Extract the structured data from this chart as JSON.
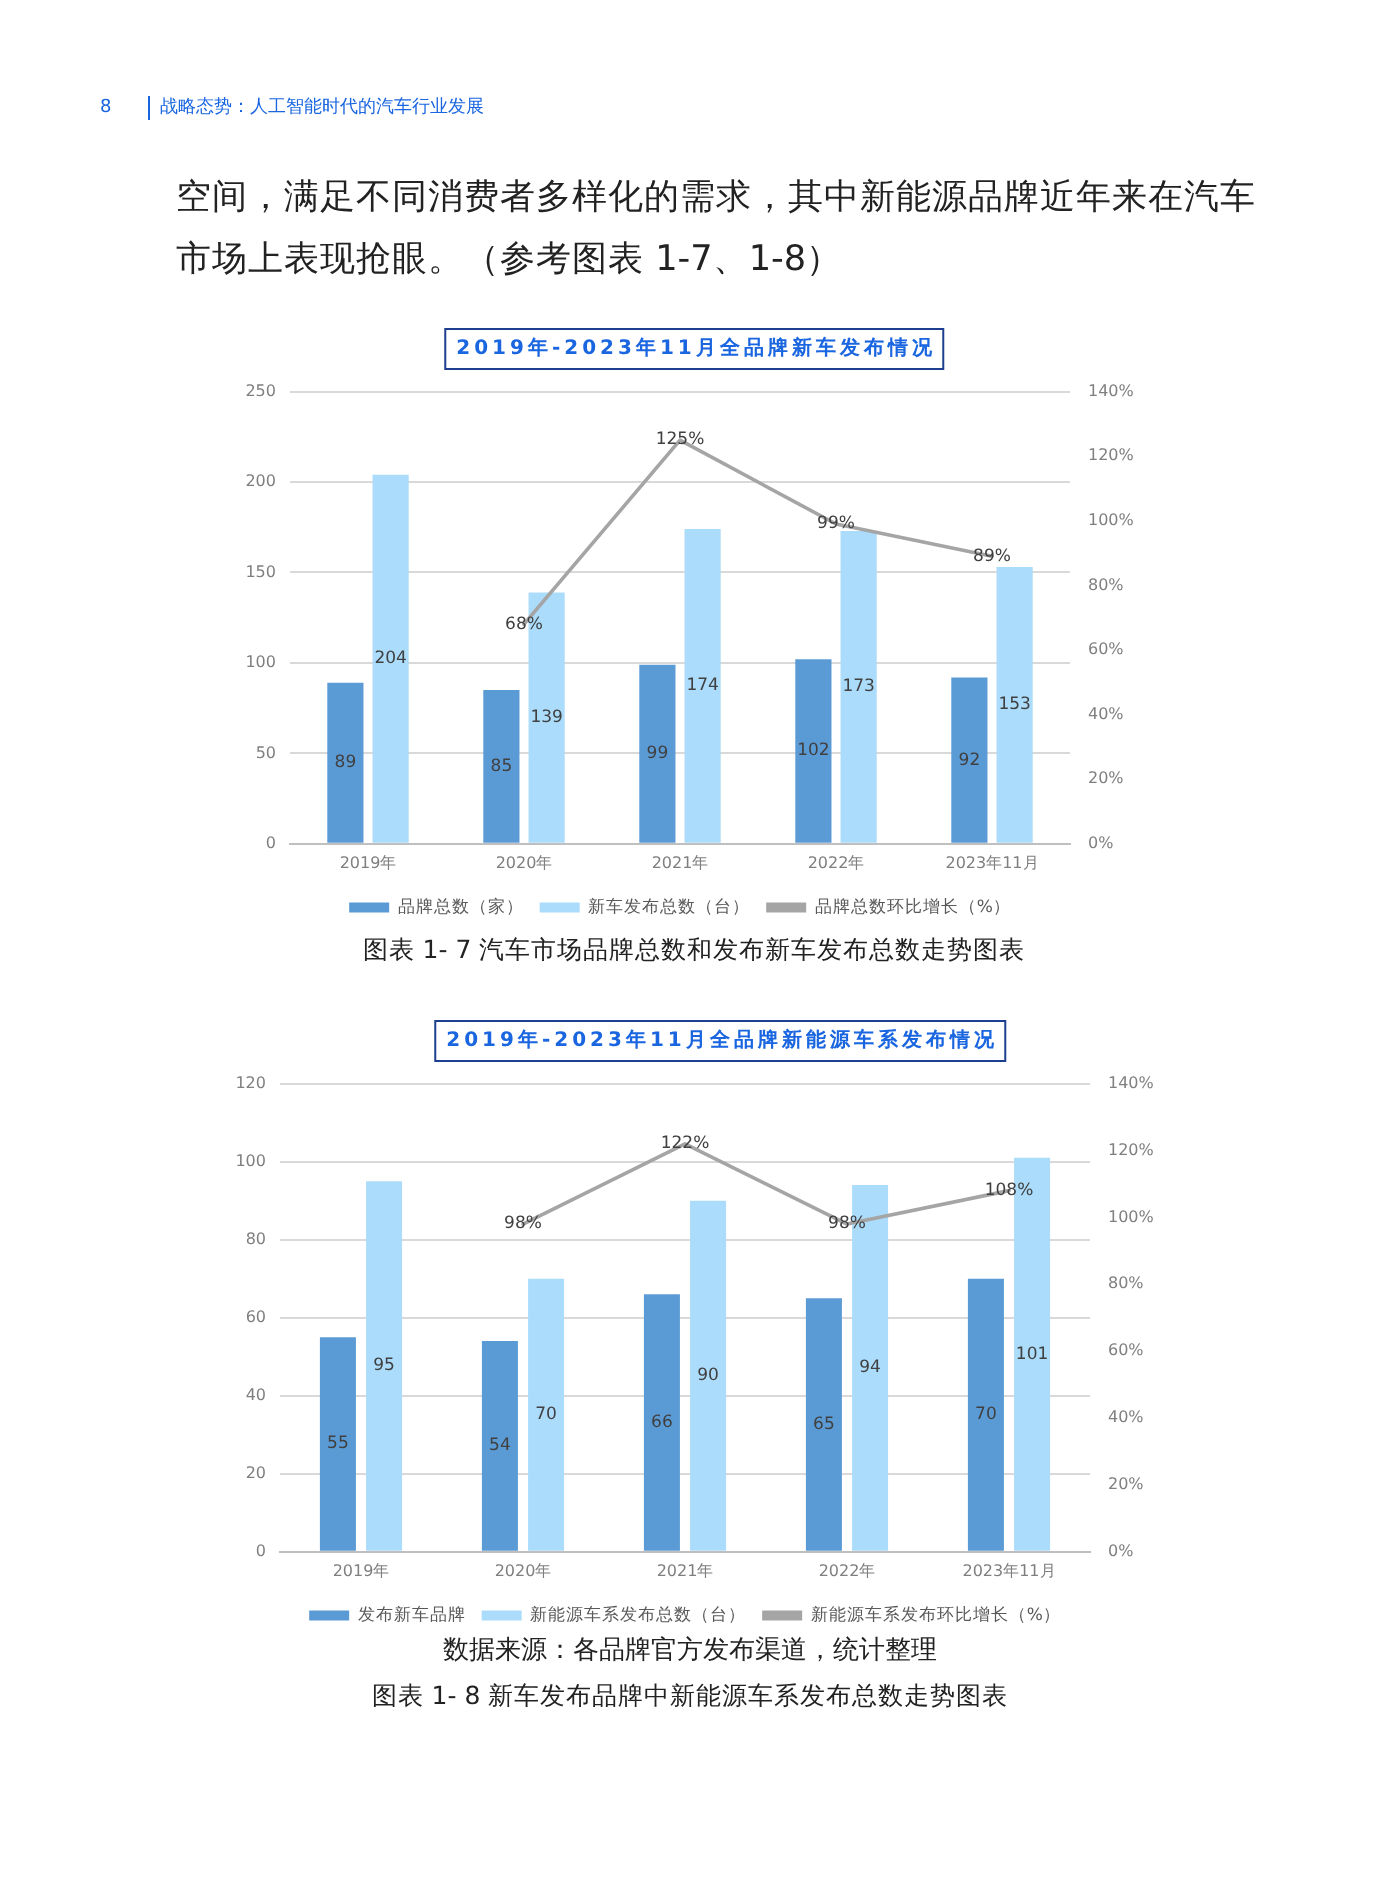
{
  "chart_data": [
    {
      "type": "bar",
      "title": "2019年-2023年11月全品牌新车发布情况",
      "categories": [
        "2019年",
        "2020年",
        "2021年",
        "2022年",
        "2023年11月"
      ],
      "series": [
        {
          "name": "品牌总数（家）",
          "color": "#5b9bd5",
          "values": [
            89,
            85,
            99,
            102,
            92
          ],
          "value_labels": [
            "89",
            "85",
            "99",
            "102",
            "92"
          ]
        },
        {
          "name": "新车发布总数（台）",
          "color": "#abdcfb",
          "values": [
            204,
            139,
            174,
            173,
            153
          ],
          "value_labels": [
            "204",
            "139",
            "174",
            "173",
            "153"
          ]
        },
        {
          "name": "品牌总数环比增长（%）",
          "type": "line",
          "axis": "y2",
          "color": "#a5a5a5",
          "values": [
            null,
            68,
            125,
            99,
            89
          ],
          "value_labels": [
            null,
            "68%",
            "125%",
            "99%",
            "89%"
          ]
        }
      ],
      "ylim": [
        0,
        250
      ],
      "yticks": [
        0,
        50,
        100,
        150,
        200,
        250
      ],
      "y2lim": [
        0,
        140
      ],
      "y2ticks": [
        {
          "value": 0,
          "label": "0%"
        },
        {
          "value": 20,
          "label": "20%"
        },
        {
          "value": 40,
          "label": "40%"
        },
        {
          "value": 60,
          "label": "60%"
        },
        {
          "value": 80,
          "label": "80%"
        },
        {
          "value": 100,
          "label": "100%"
        },
        {
          "value": 120,
          "label": "120%"
        },
        {
          "value": 140,
          "label": "140%"
        }
      ],
      "grid": "y",
      "legend": "bottom",
      "marker": "none",
      "annotations": [
        "8",
        "战略态势：人工智能时代的汽车行业发展",
        "空间，满足不同消费者多样化的需求，其中新能源品牌近年来在汽车市场上表现抢眼。（参考图表 1-7、1-8）",
        "图表 1- 7 汽车市场品牌总数和发布新车发布总数走势图表"
      ]
    },
    {
      "type": "bar",
      "title": "2019年-2023年11月全品牌新能源车系发布情况",
      "categories": [
        "2019年",
        "2020年",
        "2021年",
        "2022年",
        "2023年11月"
      ],
      "series": [
        {
          "name": "发布新车品牌",
          "color": "#5b9bd5",
          "values": [
            55,
            54,
            66,
            65,
            70
          ],
          "value_labels": [
            "55",
            "54",
            "66",
            "65",
            "70"
          ]
        },
        {
          "name": "新能源车系发布总数（台）",
          "color": "#abdcfb",
          "values": [
            95,
            70,
            90,
            94,
            101
          ],
          "value_labels": [
            "95",
            "70",
            "90",
            "94",
            "101"
          ]
        },
        {
          "name": "新能源车系发布环比增长（%）",
          "type": "line",
          "axis": "y2",
          "color": "#a5a5a5",
          "values": [
            null,
            98,
            122,
            98,
            108
          ],
          "value_labels": [
            null,
            "98%",
            "122%",
            "98%",
            "108%"
          ]
        }
      ],
      "ylim": [
        0,
        120
      ],
      "yticks": [
        0,
        20,
        40,
        60,
        80,
        100,
        120
      ],
      "y2lim": [
        0,
        140
      ],
      "y2ticks": [
        {
          "value": 0,
          "label": "0%"
        },
        {
          "value": 20,
          "label": "20%"
        },
        {
          "value": 40,
          "label": "40%"
        },
        {
          "value": 60,
          "label": "60%"
        },
        {
          "value": 80,
          "label": "80%"
        },
        {
          "value": 100,
          "label": "100%"
        },
        {
          "value": 120,
          "label": "120%"
        },
        {
          "value": 140,
          "label": "140%"
        }
      ],
      "grid": "y",
      "legend": "bottom",
      "marker": "none",
      "annotations": [
        "数据来源：各品牌官方发布渠道，统计整理",
        "图表 1- 8 新车发布品牌中新能源车系发布总数走势图表"
      ]
    }
  ]
}
